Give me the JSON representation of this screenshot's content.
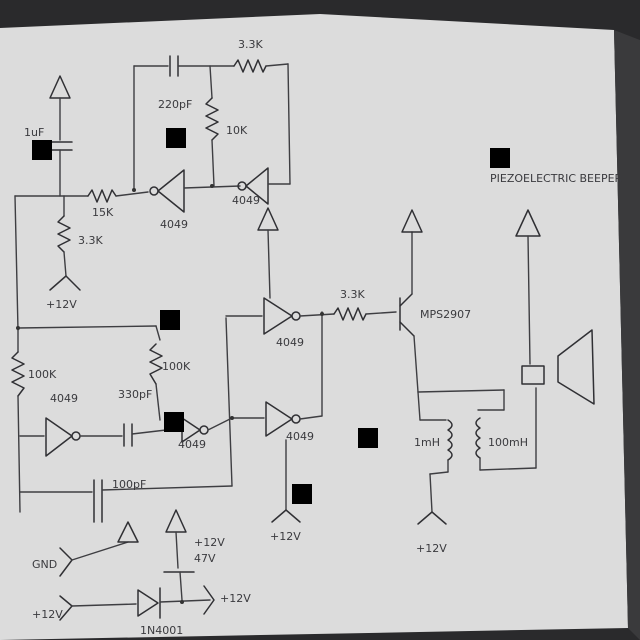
{
  "labels": {
    "cap_top": "220pF",
    "res_top_fb": "3.3K",
    "cap_left_top": "1uF",
    "res_top_mid": "10K",
    "res_top_left": "15K",
    "res_left_pull": "3.3K",
    "supply_left": "+12V",
    "inv_top_1": "4049",
    "inv_top_2": "4049",
    "res_left_big": "100K",
    "res_mid_big": "100K",
    "inv_mid_1": "4049",
    "cap_mid": "330pF",
    "inv_mid_2": "4049",
    "inv_mid_3": "4049",
    "inv_center": "4049",
    "res_center": "3.3K",
    "transistor": "MPS2907",
    "inductor_left": "1mH",
    "inductor_right": "100mH",
    "supply_center": "+12V",
    "supply_right": "+12V",
    "piezo": "PIEZOELECTRIC BEEPER",
    "cap_bottom": "100pF",
    "gnd_label": "GND",
    "in_label": "+12V",
    "reg_label": "+12V",
    "reg_val": "47V",
    "diode": "1N4001",
    "reg_out": "+12V"
  }
}
